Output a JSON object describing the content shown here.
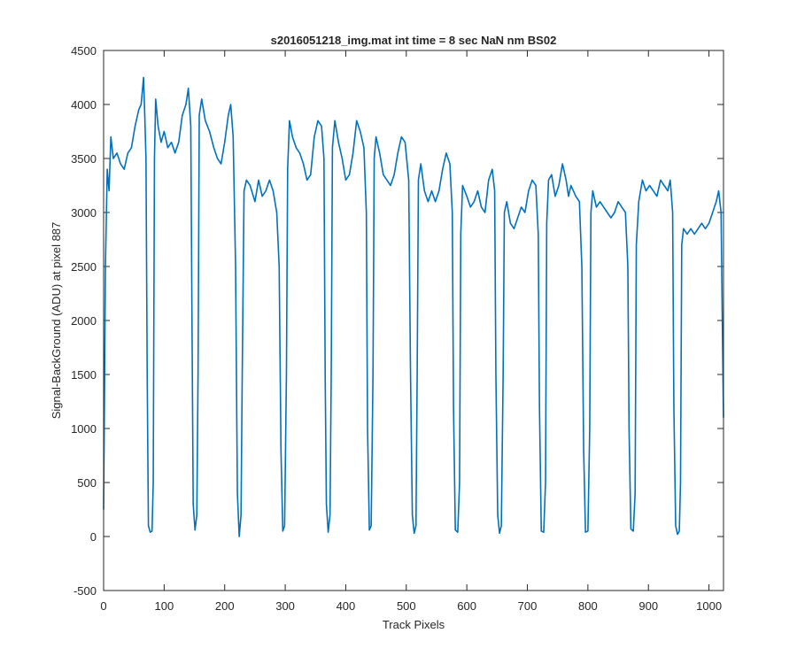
{
  "chart_data": {
    "type": "line",
    "title": "s2016051218_img.mat int time = 8 sec  NaN nm BS02",
    "xlabel": "Track Pixels",
    "ylabel": "Signal-BackGround (ADU) at pixel 887",
    "color": "#0072bd",
    "xlim": [
      0,
      1024
    ],
    "ylim": [
      -500,
      4500
    ],
    "xticks": [
      0,
      100,
      200,
      300,
      400,
      500,
      600,
      700,
      800,
      900,
      1000
    ],
    "yticks": [
      -500,
      0,
      500,
      1000,
      1500,
      2000,
      2500,
      3000,
      3500,
      4000,
      4500
    ],
    "x": [
      0,
      3,
      6,
      9,
      12,
      16,
      22,
      28,
      34,
      40,
      46,
      52,
      58,
      62,
      66,
      68,
      70,
      72,
      74,
      77,
      80,
      82,
      84,
      86,
      90,
      95,
      100,
      106,
      112,
      118,
      124,
      130,
      136,
      140,
      144,
      146,
      148,
      151,
      154,
      156,
      158,
      162,
      168,
      175,
      182,
      188,
      194,
      200,
      206,
      210,
      214,
      218,
      221,
      224,
      227,
      229,
      232,
      236,
      242,
      250,
      256,
      262,
      268,
      274,
      280,
      286,
      290,
      293,
      296,
      299,
      302,
      304,
      307,
      312,
      318,
      324,
      330,
      336,
      342,
      348,
      354,
      360,
      364,
      366,
      368,
      371,
      374,
      376,
      378,
      382,
      388,
      394,
      400,
      406,
      412,
      418,
      424,
      430,
      434,
      436,
      439,
      442,
      445,
      447,
      450,
      456,
      462,
      468,
      474,
      480,
      486,
      492,
      498,
      504,
      507,
      510,
      513,
      516,
      518,
      520,
      524,
      530,
      536,
      542,
      548,
      554,
      560,
      566,
      572,
      576,
      578,
      581,
      585,
      588,
      590,
      593,
      600,
      606,
      612,
      618,
      624,
      630,
      636,
      642,
      646,
      648,
      651,
      654,
      657,
      660,
      662,
      666,
      672,
      678,
      684,
      690,
      696,
      702,
      708,
      714,
      718,
      720,
      723,
      727,
      730,
      732,
      735,
      740,
      746,
      752,
      758,
      764,
      768,
      772,
      780,
      786,
      790,
      793,
      796,
      800,
      803,
      805,
      808,
      814,
      820,
      826,
      832,
      838,
      844,
      850,
      856,
      862,
      866,
      868,
      871,
      875,
      878,
      880,
      884,
      890,
      896,
      902,
      908,
      914,
      920,
      926,
      932,
      936,
      940,
      942,
      945,
      948,
      951,
      953,
      955,
      958,
      964,
      970,
      976,
      982,
      988,
      994,
      1000,
      1006,
      1012,
      1016,
      1020,
      1022,
      1024
    ],
    "values": [
      250,
      2500,
      3400,
      3200,
      3700,
      3500,
      3550,
      3450,
      3400,
      3550,
      3600,
      3800,
      3950,
      4000,
      4250,
      3900,
      3500,
      1500,
      100,
      40,
      50,
      500,
      3500,
      4050,
      3800,
      3650,
      3750,
      3600,
      3650,
      3550,
      3650,
      3900,
      4000,
      4150,
      3800,
      2000,
      300,
      60,
      200,
      1500,
      3900,
      4050,
      3850,
      3750,
      3600,
      3500,
      3450,
      3650,
      3900,
      4000,
      3700,
      2500,
      400,
      0,
      200,
      1500,
      3200,
      3300,
      3250,
      3100,
      3300,
      3150,
      3200,
      3300,
      3200,
      3000,
      2500,
      800,
      50,
      100,
      1500,
      3400,
      3850,
      3700,
      3600,
      3550,
      3450,
      3300,
      3350,
      3700,
      3850,
      3800,
      3500,
      1500,
      300,
      40,
      200,
      1500,
      3600,
      3850,
      3650,
      3500,
      3300,
      3350,
      3550,
      3850,
      3750,
      3600,
      3000,
      1000,
      60,
      100,
      1500,
      3500,
      3700,
      3550,
      3350,
      3300,
      3250,
      3350,
      3550,
      3700,
      3650,
      3300,
      1500,
      200,
      30,
      100,
      1500,
      3300,
      3450,
      3200,
      3100,
      3200,
      3100,
      3200,
      3400,
      3550,
      3450,
      3000,
      1200,
      60,
      40,
      500,
      2800,
      3250,
      3150,
      3050,
      3100,
      3200,
      3050,
      3000,
      3300,
      3400,
      3200,
      1500,
      200,
      30,
      100,
      1500,
      3000,
      3100,
      2900,
      2850,
      2950,
      3050,
      3000,
      3200,
      3300,
      3250,
      2800,
      1200,
      50,
      40,
      500,
      2900,
      3300,
      3350,
      3150,
      3250,
      3450,
      3300,
      3150,
      3250,
      3150,
      3100,
      2500,
      800,
      40,
      50,
      1000,
      3000,
      3200,
      3050,
      3100,
      3050,
      3000,
      2950,
      3000,
      3100,
      3050,
      3000,
      2500,
      1000,
      70,
      50,
      400,
      2700,
      3100,
      3300,
      3200,
      3250,
      3200,
      3150,
      3300,
      3250,
      3200,
      3300,
      3000,
      1200,
      100,
      20,
      50,
      500,
      2700,
      2850,
      2800,
      2850,
      2800,
      2850,
      2900,
      2850,
      2900,
      3000,
      3100,
      3200,
      3000,
      2000,
      1100
    ]
  }
}
